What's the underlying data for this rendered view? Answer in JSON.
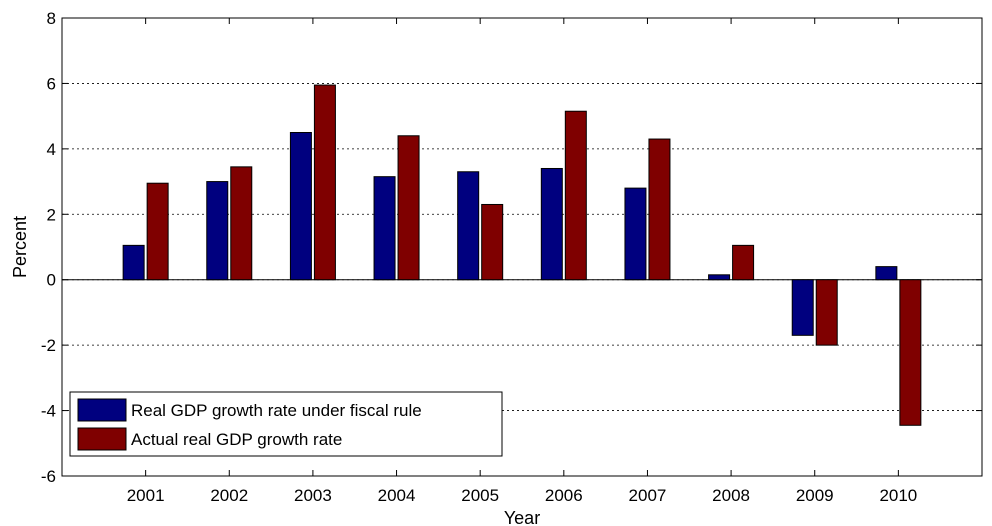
{
  "chart_data": {
    "type": "bar",
    "title": "",
    "xlabel": "Year",
    "ylabel": "Percent",
    "categories": [
      "2001",
      "2002",
      "2003",
      "2004",
      "2005",
      "2006",
      "2007",
      "2008",
      "2009",
      "2010"
    ],
    "series": [
      {
        "name": "Real GDP growth rate under fiscal rule",
        "color": "#00007f",
        "values": [
          1.05,
          3.0,
          4.5,
          3.15,
          3.3,
          3.4,
          2.8,
          0.15,
          -1.7,
          0.4
        ]
      },
      {
        "name": "Actual real GDP growth rate",
        "color": "#7f0000",
        "values": [
          2.95,
          3.45,
          5.95,
          4.4,
          2.3,
          5.15,
          4.3,
          1.05,
          -2.0,
          -4.45
        ]
      }
    ],
    "ylim": [
      -6,
      8
    ],
    "yticks": [
      "-6",
      "-4",
      "-2",
      "0",
      "2",
      "4",
      "6",
      "8"
    ],
    "grid": "horizontal dotted",
    "legend_position": "bottom-left"
  }
}
